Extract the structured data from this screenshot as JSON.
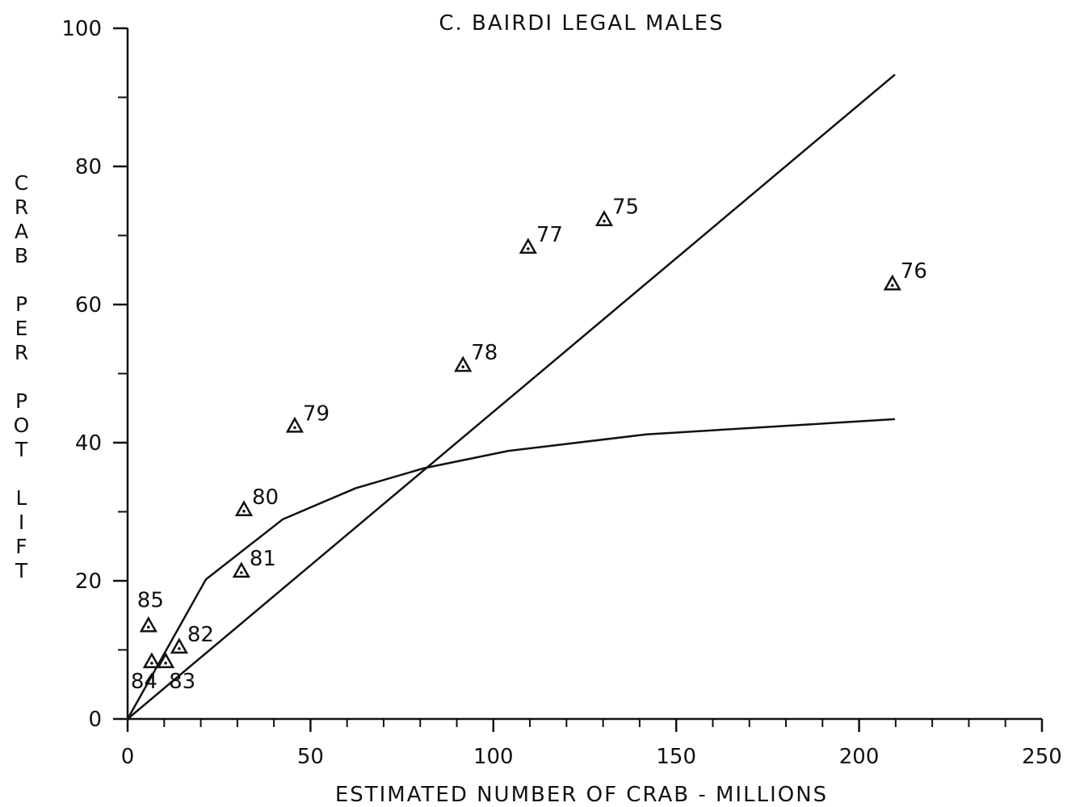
{
  "chart_data": {
    "type": "scatter",
    "title": "C. BAIRDI LEGAL MALES",
    "x_label": "ESTIMATED NUMBER OF CRAB - MILLIONS",
    "y_label": "CRAB PER POT LIFT",
    "xlim": [
      0,
      250
    ],
    "ylim": [
      0,
      100
    ],
    "xticks": [
      0,
      50,
      100,
      150,
      200,
      250
    ],
    "yticks": [
      0,
      20,
      40,
      60,
      80,
      100
    ],
    "x_minor_ticks": [
      10,
      20,
      30,
      40,
      60,
      70,
      80,
      90,
      110,
      120,
      130,
      140,
      160,
      170,
      180,
      190,
      210,
      220,
      230,
      240
    ],
    "y_minor_ticks": [
      10,
      30,
      50,
      70,
      90
    ],
    "color": "#111111",
    "points": {
      "labels": [
        "85",
        "84",
        "83",
        "82",
        "81",
        "80",
        "79",
        "78",
        "77",
        "75",
        "76"
      ],
      "x": [
        5.7,
        6.6,
        10.4,
        14.1,
        31.1,
        31.8,
        45.7,
        91.7,
        109.5,
        130.3,
        209.1
      ],
      "y": [
        13.4,
        8.2,
        8.2,
        10.3,
        21.3,
        30.2,
        42.3,
        51.1,
        68.2,
        72.2,
        62.9
      ]
    },
    "lines": [
      {
        "x": [
          0,
          209.8
        ],
        "y": [
          0,
          93.3
        ]
      },
      {
        "x": [
          0,
          21.4,
          42.4,
          62.3,
          81,
          104,
          141.8,
          209.8
        ],
        "y": [
          0,
          20.2,
          28.9,
          33.4,
          36.3,
          38.8,
          41.2,
          43.4
        ]
      }
    ]
  }
}
